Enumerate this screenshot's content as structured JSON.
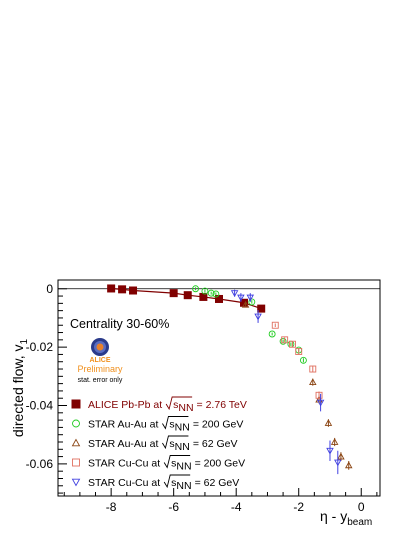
{
  "chart_data": {
    "type": "scatter",
    "xlabel": "η - y",
    "xlabel_sub": "beam",
    "ylabel": "directed flow, v",
    "ylabel_sub": "1",
    "xlim": [
      -9.7,
      0.6
    ],
    "ylim": [
      -0.071,
      0.003
    ],
    "x_ticks": [
      -8,
      -6,
      -4,
      -2,
      0
    ],
    "y_ticks": [
      0,
      -0.02,
      -0.04,
      -0.06
    ],
    "y_tick_labels": [
      "0",
      "-0.02",
      "-0.04",
      "-0.06"
    ],
    "reference_line_y": 0,
    "grid": false,
    "annotation": "Centrality 30-60%",
    "logo": {
      "text": "ALICE",
      "line1": "Preliminary",
      "line2": "stat. error only",
      "colors": {
        "text": "#f0901e",
        "ring": "#2a3a8a",
        "core": "#e8802a"
      }
    },
    "series": [
      {
        "name": "ALICE Pb-Pb  at",
        "sqrt_label": "s",
        "sqrt_sub": "NN",
        "energy": "= 2.76 TeV",
        "marker": "square-filled",
        "color": "#800000",
        "connect": true,
        "x": [
          -8.0,
          -7.65,
          -7.3,
          -6.0,
          -5.55,
          -5.05,
          -4.55,
          -3.75,
          -3.2
        ],
        "y": [
          0.0001,
          -0.0002,
          -0.0006,
          -0.0015,
          -0.0022,
          -0.0028,
          -0.0035,
          -0.0048,
          -0.0068
        ],
        "err": [
          0.0003,
          0.0003,
          0.0003,
          0.0003,
          0.0003,
          0.0004,
          0.0004,
          0.0007,
          0.001
        ]
      },
      {
        "name": "STAR Au-Au at",
        "sqrt_label": "s",
        "sqrt_sub": "NN",
        "energy": "= 200 GeV",
        "marker": "circle-open",
        "color": "#22cc22",
        "x": [
          -5.3,
          -5.0,
          -4.8,
          -4.65,
          -3.5,
          -2.85,
          -2.5,
          -2.25,
          -2.0,
          -1.85
        ],
        "y": [
          0.0,
          -0.0008,
          -0.0015,
          -0.0018,
          -0.0045,
          -0.0155,
          -0.018,
          -0.019,
          -0.021,
          -0.0245
        ],
        "err": [
          0.0005,
          0.0005,
          0.0005,
          0.0005,
          0.0006,
          0.0005,
          0.0006,
          0.0006,
          0.0006,
          0.0007
        ]
      },
      {
        "name": "STAR Au-Au at",
        "sqrt_label": "s",
        "sqrt_sub": "NN",
        "energy": "= 62 GeV",
        "marker": "triangle-up-open",
        "color": "#8b4513",
        "x": [
          -3.7,
          -1.55,
          -1.35,
          -1.05,
          -0.85,
          -0.65,
          -0.4
        ],
        "y": [
          -0.0055,
          -0.032,
          -0.038,
          -0.046,
          -0.0525,
          -0.0575,
          -0.0605
        ],
        "err": [
          0.0007,
          0.0012,
          0.0013,
          0.0013,
          0.0014,
          0.0015,
          0.0015
        ]
      },
      {
        "name": "STAR Cu-Cu at",
        "sqrt_label": "s",
        "sqrt_sub": "NN",
        "energy": "= 200 GeV",
        "marker": "square-open",
        "color": "#e07060",
        "x": [
          -2.75,
          -2.45,
          -2.2,
          -2.0,
          -1.55,
          -1.35
        ],
        "y": [
          -0.0125,
          -0.0175,
          -0.019,
          -0.0215,
          -0.0275,
          -0.0365
        ],
        "err": [
          0.0006,
          0.0008,
          0.0009,
          0.0009,
          0.0011,
          0.0013
        ]
      },
      {
        "name": "STAR Cu-Cu at",
        "sqrt_label": "s",
        "sqrt_sub": "NN",
        "energy": "= 62 GeV",
        "marker": "triangle-down-open",
        "color": "#4040e0",
        "x": [
          -4.05,
          -3.85,
          -3.55,
          -3.3,
          -1.3,
          -1.0,
          -0.75
        ],
        "y": [
          -0.0015,
          -0.003,
          -0.003,
          -0.0095,
          -0.039,
          -0.0555,
          -0.0595
        ],
        "err": [
          0.0012,
          0.0015,
          0.0015,
          0.0022,
          0.003,
          0.0035,
          0.004
        ]
      }
    ]
  }
}
